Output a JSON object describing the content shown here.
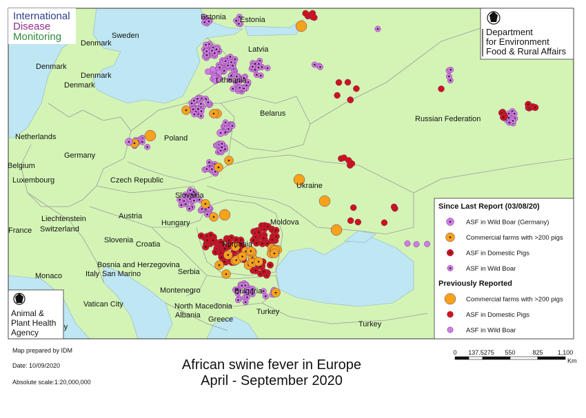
{
  "logos": {
    "idm": [
      "International",
      "Disease",
      "Monitoring"
    ],
    "defra": [
      "Department",
      "for Environment",
      "Food & Rural Affairs"
    ],
    "apha": [
      "Animal &",
      "Plant Health",
      "Agency"
    ]
  },
  "map": {
    "labels": [
      "Estonia",
      "Estonia",
      "Sweden",
      "Denmark",
      "Latvia",
      "Denmark",
      "Denmark",
      "Denmark",
      "Lithuania",
      "Belarus",
      "Russian Federation",
      "Netherlands",
      "Poland",
      "Germany",
      "Belgium",
      "Luxembourg",
      "Czech Republic",
      "Ukraine",
      "Slovakia",
      "Austria",
      "Liechtenstein",
      "Switzerland",
      "France",
      "Hungary",
      "Moldova",
      "Slovenia",
      "Croatia",
      "Romania",
      "Bosnia and Herzegovina",
      "Italy",
      "San Marino",
      "Monaco",
      "Serbia",
      "Montenegro",
      "Bulgaria",
      "Vatican City",
      "North Macedonia",
      "Albania",
      "Greece",
      "Turkey",
      "Turkey",
      "Italy"
    ]
  },
  "legend": {
    "since_title": "Since Last Report (03/08/20)",
    "since_items": [
      "ASF in Wild Boar (Germany)",
      "Commercial farms with >200 pigs",
      "ASF in Domestic Pigs",
      "ASF in Wild Boar"
    ],
    "previous_title": "Previously Reported",
    "previous_items": [
      "Commercial farms with >200 pigs",
      "ASF in Domestic Pigs",
      "ASF in Wild Boar"
    ]
  },
  "footer": {
    "prepared": "Map prepared by IDM",
    "date": "Date: 10/09/2020",
    "scale_label": "Absolute scale:",
    "scale": "1:20,000,000",
    "title": [
      "African swine fever in Europe",
      "April - September 2020"
    ]
  },
  "scalebar": {
    "ticks": [
      "0",
      "137.5275",
      "550",
      "825",
      "1,100"
    ],
    "unit": "Km"
  }
}
